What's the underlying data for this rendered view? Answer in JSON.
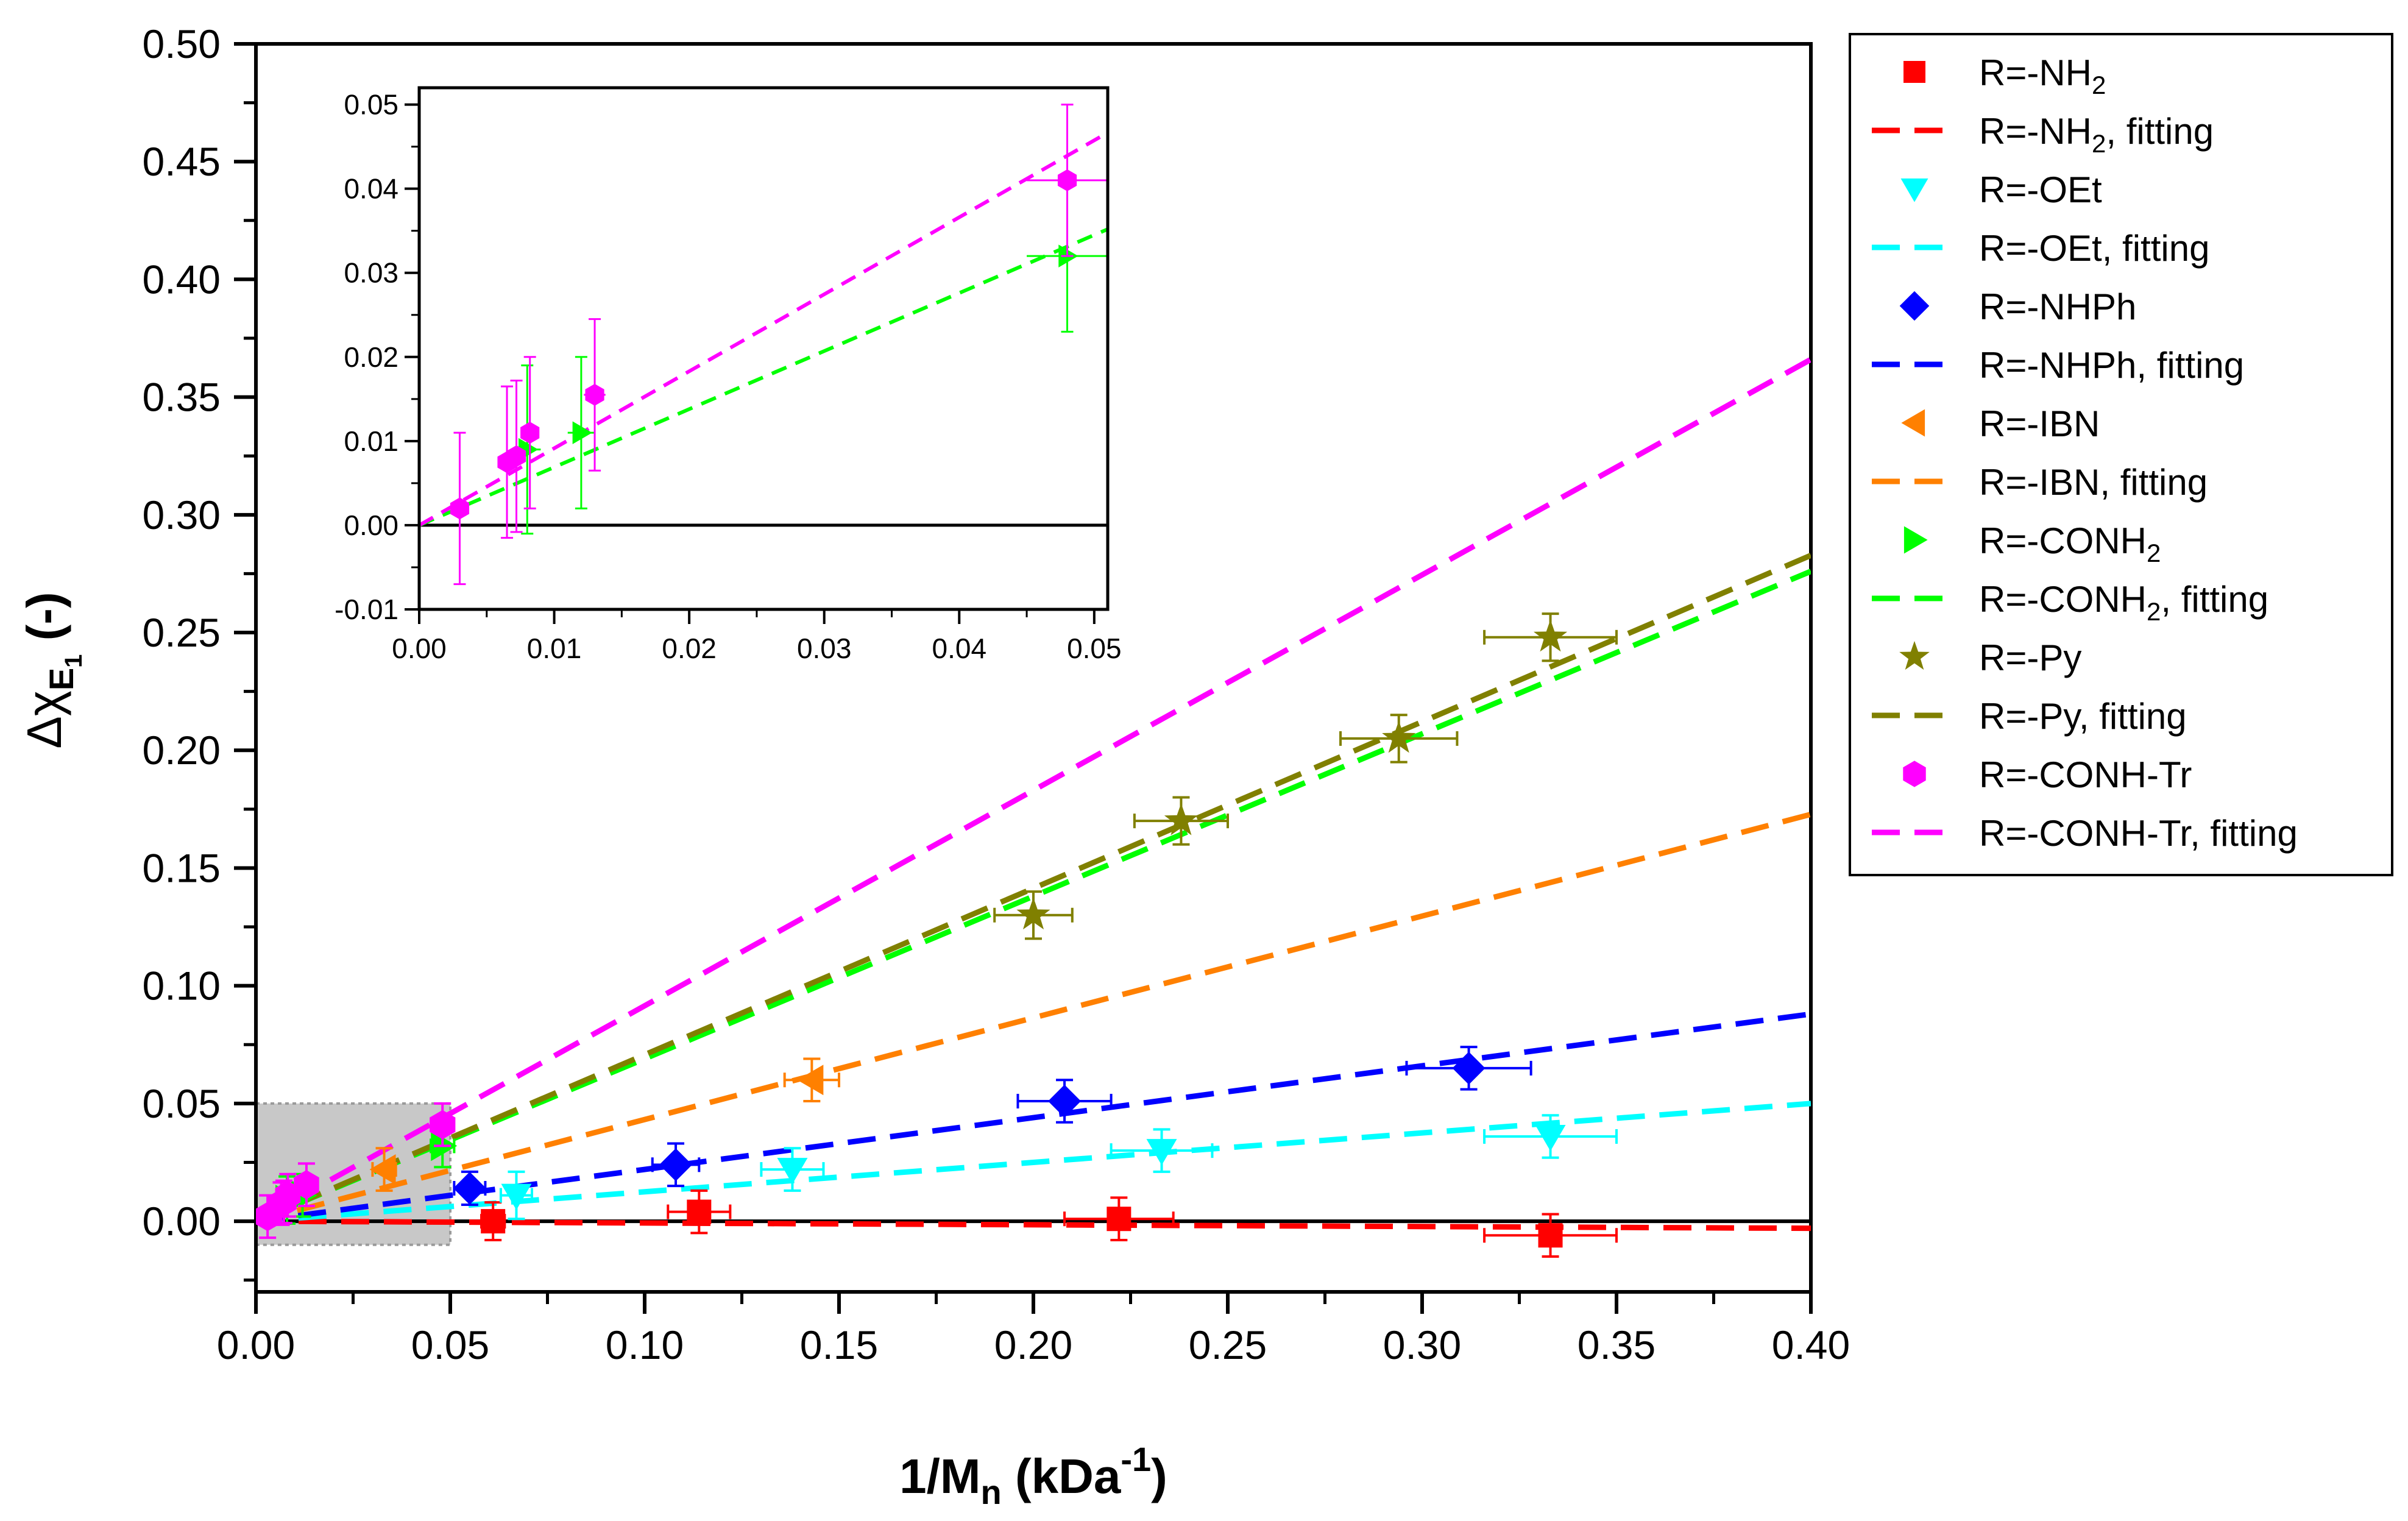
{
  "chart_data": {
    "type": "scatter",
    "xlabel": {
      "base": "1/M",
      "sub": "n",
      "unit_open": " (kDa",
      "sup": "-1",
      "unit_close": ")"
    },
    "ylabel": {
      "base": "Δχ",
      "sub": "E",
      "subsub": "1",
      "unit": " (-)"
    },
    "xlim": [
      0,
      0.4
    ],
    "ylim": [
      -0.03,
      0.5
    ],
    "x_ticks": [
      "0.00",
      "0.05",
      "0.10",
      "0.15",
      "0.20",
      "0.25",
      "0.30",
      "0.35",
      "0.40"
    ],
    "y_ticks": [
      "0.00",
      "0.05",
      "0.10",
      "0.15",
      "0.20",
      "0.25",
      "0.30",
      "0.35",
      "0.40",
      "0.45",
      "0.50"
    ],
    "x_tick_values": [
      0,
      0.05,
      0.1,
      0.15,
      0.2,
      0.25,
      0.3,
      0.35,
      0.4
    ],
    "y_tick_values": [
      0,
      0.05,
      0.1,
      0.15,
      0.2,
      0.25,
      0.3,
      0.35,
      0.4,
      0.45,
      0.5
    ],
    "highlight_region": {
      "x": [
        0,
        0.05
      ],
      "y": [
        -0.01,
        0.05
      ]
    },
    "series": [
      {
        "name": "R=-NH",
        "sub": "2",
        "marker": "square",
        "color": "#ff0000",
        "slope": -0.0075,
        "points": [
          {
            "x": 0.061,
            "y": 0.0,
            "xerr": 0.003,
            "yerr": 0.008
          },
          {
            "x": 0.114,
            "y": 0.004,
            "xerr": 0.008,
            "yerr": 0.009
          },
          {
            "x": 0.222,
            "y": 0.001,
            "xerr": 0.014,
            "yerr": 0.009
          },
          {
            "x": 0.333,
            "y": -0.006,
            "xerr": 0.017,
            "yerr": 0.009
          }
        ]
      },
      {
        "name": "R=-OEt",
        "sub": "",
        "marker": "triangle-down",
        "color": "#00ffff",
        "slope": 0.125,
        "points": [
          {
            "x": 0.067,
            "y": 0.011,
            "xerr": 0.004,
            "yerr": 0.01
          },
          {
            "x": 0.138,
            "y": 0.022,
            "xerr": 0.008,
            "yerr": 0.009
          },
          {
            "x": 0.233,
            "y": 0.03,
            "xerr": 0.013,
            "yerr": 0.009
          },
          {
            "x": 0.333,
            "y": 0.036,
            "xerr": 0.017,
            "yerr": 0.009
          }
        ]
      },
      {
        "name": "R=-NHPh",
        "sub": "",
        "marker": "diamond",
        "color": "#0000ff",
        "slope": 0.22,
        "points": [
          {
            "x": 0.055,
            "y": 0.014,
            "xerr": 0.004,
            "yerr": 0.007
          },
          {
            "x": 0.108,
            "y": 0.024,
            "xerr": 0.006,
            "yerr": 0.009
          },
          {
            "x": 0.208,
            "y": 0.051,
            "xerr": 0.012,
            "yerr": 0.009
          },
          {
            "x": 0.312,
            "y": 0.065,
            "xerr": 0.016,
            "yerr": 0.009
          }
        ]
      },
      {
        "name": "R=-IBN",
        "sub": "",
        "marker": "triangle-left",
        "color": "#ff8000",
        "slope": 0.432,
        "points": [
          {
            "x": 0.033,
            "y": 0.022,
            "xerr": 0.003,
            "yerr": 0.009
          },
          {
            "x": 0.143,
            "y": 0.06,
            "xerr": 0.007,
            "yerr": 0.009
          }
        ]
      },
      {
        "name": "R=-CONH",
        "sub": "2",
        "marker": "triangle-right",
        "color": "#00ff00",
        "slope": 0.69,
        "points": [
          {
            "x": 0.008,
            "y": 0.009,
            "xerr": 0.001,
            "yerr": 0.01
          },
          {
            "x": 0.012,
            "y": 0.011,
            "xerr": 0.001,
            "yerr": 0.009
          },
          {
            "x": 0.048,
            "y": 0.032,
            "xerr": 0.003,
            "yerr": 0.009
          }
        ]
      },
      {
        "name": "R=-Py",
        "sub": "",
        "marker": "star",
        "color": "#808000",
        "slope": 0.707,
        "points": [
          {
            "x": 0.2,
            "y": 0.13,
            "xerr": 0.01,
            "yerr": 0.01
          },
          {
            "x": 0.238,
            "y": 0.17,
            "xerr": 0.012,
            "yerr": 0.01
          },
          {
            "x": 0.294,
            "y": 0.205,
            "xerr": 0.015,
            "yerr": 0.01
          },
          {
            "x": 0.333,
            "y": 0.248,
            "xerr": 0.017,
            "yerr": 0.01
          }
        ]
      },
      {
        "name": "R=-CONH-Tr",
        "sub": "",
        "marker": "hexagon",
        "color": "#ff00ff",
        "slope": 0.915,
        "points": [
          {
            "x": 0.003,
            "y": 0.002,
            "xerr": 0.0004,
            "yerr": 0.009
          },
          {
            "x": 0.0065,
            "y": 0.0075,
            "xerr": 0.0005,
            "yerr": 0.009
          },
          {
            "x": 0.0072,
            "y": 0.0082,
            "xerr": 0.0005,
            "yerr": 0.009
          },
          {
            "x": 0.0082,
            "y": 0.011,
            "xerr": 0.0005,
            "yerr": 0.009
          },
          {
            "x": 0.013,
            "y": 0.0155,
            "xerr": 0.0008,
            "yerr": 0.009
          },
          {
            "x": 0.048,
            "y": 0.041,
            "xerr": 0.003,
            "yerr": 0.009
          }
        ]
      }
    ],
    "legend": {
      "placement": "right, outside plot",
      "fitting_suffix": ", fitting"
    },
    "inset": {
      "xlim": [
        0,
        0.051
      ],
      "ylim": [
        -0.01,
        0.052
      ],
      "x_ticks": [
        "0.00",
        "0.01",
        "0.02",
        "0.03",
        "0.04",
        "0.05"
      ],
      "y_ticks": [
        "-0.01",
        "0.00",
        "0.01",
        "0.02",
        "0.03",
        "0.04",
        "0.05"
      ],
      "x_tick_values": [
        0,
        0.01,
        0.02,
        0.03,
        0.04,
        0.05
      ],
      "y_tick_values": [
        -0.01,
        0,
        0.01,
        0.02,
        0.03,
        0.04,
        0.05
      ],
      "series_shown": [
        "R=-CONH",
        "R=-CONH-Tr"
      ]
    }
  }
}
